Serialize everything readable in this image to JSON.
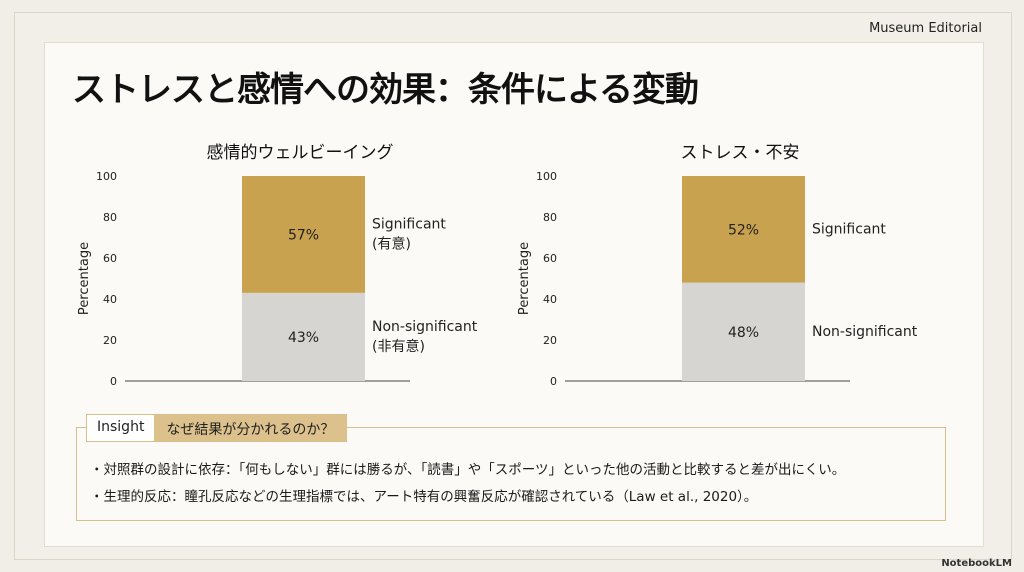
{
  "brand": "Museum Editorial",
  "title": "ストレスと感情への効果：条件による変動",
  "watermark": "NotebookLM",
  "colors": {
    "significant": "#c9a24f",
    "nonsignificant": "#d6d5d1"
  },
  "chart_data": [
    {
      "type": "bar",
      "stacked": true,
      "title": "感情的ウェルビーイング",
      "ylabel": "Percentage",
      "ylim": [
        0,
        100
      ],
      "yticks": [
        0,
        20,
        40,
        60,
        80,
        100
      ],
      "series": [
        {
          "name": "Non-significant (非有意)",
          "label1": "Non-significant",
          "label2": "(非有意)",
          "value": 43,
          "label": "43%"
        },
        {
          "name": "Significant (有意)",
          "label1": "Significant",
          "label2": "(有意)",
          "value": 57,
          "label": "57%"
        }
      ]
    },
    {
      "type": "bar",
      "stacked": true,
      "title": "ストレス・不安",
      "ylabel": "Percentage",
      "ylim": [
        0,
        100
      ],
      "yticks": [
        0,
        20,
        40,
        60,
        80,
        100
      ],
      "series": [
        {
          "name": "Non-significant",
          "label1": "Non-significant",
          "label2": "",
          "value": 48,
          "label": "48%"
        },
        {
          "name": "Significant",
          "label1": "Significant",
          "label2": "",
          "value": 52,
          "label": "52%"
        }
      ]
    }
  ],
  "insight": {
    "tag": "Insight",
    "heading": "なぜ結果が分かれるのか？",
    "bullets": [
      "・対照群の設計に依存：「何もしない」群には勝るが、「読書」や「スポーツ」といった他の活動と比較すると差が出にくい。",
      "・生理的反応：瞳孔反応などの生理指標では、アート特有の興奮反応が確認されている（Law et al., 2020）。"
    ]
  }
}
